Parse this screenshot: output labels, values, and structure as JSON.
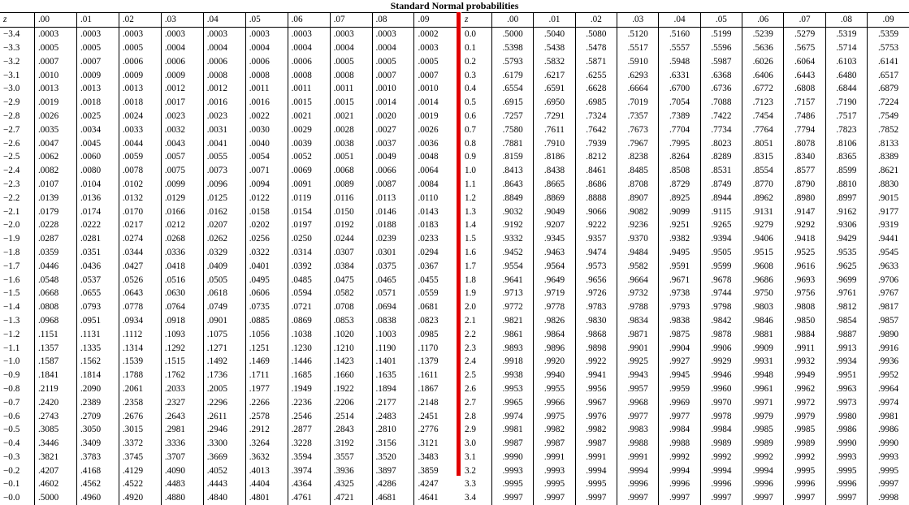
{
  "title": "Standard Normal probabilities",
  "z_header": "z",
  "column_headers": [
    ".00",
    ".01",
    ".02",
    ".03",
    ".04",
    ".05",
    ".06",
    ".07",
    ".08",
    ".09"
  ],
  "left_table": {
    "rows": [
      {
        "z": "−3.4",
        "values": [
          ".0003",
          ".0003",
          ".0003",
          ".0003",
          ".0003",
          ".0003",
          ".0003",
          ".0003",
          ".0003",
          ".0002"
        ]
      },
      {
        "z": "−3.3",
        "values": [
          ".0005",
          ".0005",
          ".0005",
          ".0004",
          ".0004",
          ".0004",
          ".0004",
          ".0004",
          ".0004",
          ".0003"
        ]
      },
      {
        "z": "−3.2",
        "values": [
          ".0007",
          ".0007",
          ".0006",
          ".0006",
          ".0006",
          ".0006",
          ".0006",
          ".0005",
          ".0005",
          ".0005"
        ]
      },
      {
        "z": "−3.1",
        "values": [
          ".0010",
          ".0009",
          ".0009",
          ".0009",
          ".0008",
          ".0008",
          ".0008",
          ".0008",
          ".0007",
          ".0007"
        ]
      },
      {
        "z": "−3.0",
        "values": [
          ".0013",
          ".0013",
          ".0013",
          ".0012",
          ".0012",
          ".0011",
          ".0011",
          ".0011",
          ".0010",
          ".0010"
        ]
      },
      {
        "z": "−2.9",
        "values": [
          ".0019",
          ".0018",
          ".0018",
          ".0017",
          ".0016",
          ".0016",
          ".0015",
          ".0015",
          ".0014",
          ".0014"
        ]
      },
      {
        "z": "−2.8",
        "values": [
          ".0026",
          ".0025",
          ".0024",
          ".0023",
          ".0023",
          ".0022",
          ".0021",
          ".0021",
          ".0020",
          ".0019"
        ]
      },
      {
        "z": "−2.7",
        "values": [
          ".0035",
          ".0034",
          ".0033",
          ".0032",
          ".0031",
          ".0030",
          ".0029",
          ".0028",
          ".0027",
          ".0026"
        ]
      },
      {
        "z": "−2.6",
        "values": [
          ".0047",
          ".0045",
          ".0044",
          ".0043",
          ".0041",
          ".0040",
          ".0039",
          ".0038",
          ".0037",
          ".0036"
        ]
      },
      {
        "z": "−2.5",
        "values": [
          ".0062",
          ".0060",
          ".0059",
          ".0057",
          ".0055",
          ".0054",
          ".0052",
          ".0051",
          ".0049",
          ".0048"
        ]
      },
      {
        "z": "−2.4",
        "values": [
          ".0082",
          ".0080",
          ".0078",
          ".0075",
          ".0073",
          ".0071",
          ".0069",
          ".0068",
          ".0066",
          ".0064"
        ]
      },
      {
        "z": "−2.3",
        "values": [
          ".0107",
          ".0104",
          ".0102",
          ".0099",
          ".0096",
          ".0094",
          ".0091",
          ".0089",
          ".0087",
          ".0084"
        ]
      },
      {
        "z": "−2.2",
        "values": [
          ".0139",
          ".0136",
          ".0132",
          ".0129",
          ".0125",
          ".0122",
          ".0119",
          ".0116",
          ".0113",
          ".0110"
        ]
      },
      {
        "z": "−2.1",
        "values": [
          ".0179",
          ".0174",
          ".0170",
          ".0166",
          ".0162",
          ".0158",
          ".0154",
          ".0150",
          ".0146",
          ".0143"
        ]
      },
      {
        "z": "−2.0",
        "values": [
          ".0228",
          ".0222",
          ".0217",
          ".0212",
          ".0207",
          ".0202",
          ".0197",
          ".0192",
          ".0188",
          ".0183"
        ]
      },
      {
        "z": "−1.9",
        "values": [
          ".0287",
          ".0281",
          ".0274",
          ".0268",
          ".0262",
          ".0256",
          ".0250",
          ".0244",
          ".0239",
          ".0233"
        ]
      },
      {
        "z": "−1.8",
        "values": [
          ".0359",
          ".0351",
          ".0344",
          ".0336",
          ".0329",
          ".0322",
          ".0314",
          ".0307",
          ".0301",
          ".0294"
        ]
      },
      {
        "z": "−1.7",
        "values": [
          ".0446",
          ".0436",
          ".0427",
          ".0418",
          ".0409",
          ".0401",
          ".0392",
          ".0384",
          ".0375",
          ".0367"
        ]
      },
      {
        "z": "−1.6",
        "values": [
          ".0548",
          ".0537",
          ".0526",
          ".0516",
          ".0505",
          ".0495",
          ".0485",
          ".0475",
          ".0465",
          ".0455"
        ]
      },
      {
        "z": "−1.5",
        "values": [
          ".0668",
          ".0655",
          ".0643",
          ".0630",
          ".0618",
          ".0606",
          ".0594",
          ".0582",
          ".0571",
          ".0559"
        ]
      },
      {
        "z": "−1.4",
        "values": [
          ".0808",
          ".0793",
          ".0778",
          ".0764",
          ".0749",
          ".0735",
          ".0721",
          ".0708",
          ".0694",
          ".0681"
        ]
      },
      {
        "z": "−1.3",
        "values": [
          ".0968",
          ".0951",
          ".0934",
          ".0918",
          ".0901",
          ".0885",
          ".0869",
          ".0853",
          ".0838",
          ".0823"
        ]
      },
      {
        "z": "−1.2",
        "values": [
          ".1151",
          ".1131",
          ".1112",
          ".1093",
          ".1075",
          ".1056",
          ".1038",
          ".1020",
          ".1003",
          ".0985"
        ]
      },
      {
        "z": "−1.1",
        "values": [
          ".1357",
          ".1335",
          ".1314",
          ".1292",
          ".1271",
          ".1251",
          ".1230",
          ".1210",
          ".1190",
          ".1170"
        ]
      },
      {
        "z": "−1.0",
        "values": [
          ".1587",
          ".1562",
          ".1539",
          ".1515",
          ".1492",
          ".1469",
          ".1446",
          ".1423",
          ".1401",
          ".1379"
        ]
      },
      {
        "z": "−0.9",
        "values": [
          ".1841",
          ".1814",
          ".1788",
          ".1762",
          ".1736",
          ".1711",
          ".1685",
          ".1660",
          ".1635",
          ".1611"
        ]
      },
      {
        "z": "−0.8",
        "values": [
          ".2119",
          ".2090",
          ".2061",
          ".2033",
          ".2005",
          ".1977",
          ".1949",
          ".1922",
          ".1894",
          ".1867"
        ]
      },
      {
        "z": "−0.7",
        "values": [
          ".2420",
          ".2389",
          ".2358",
          ".2327",
          ".2296",
          ".2266",
          ".2236",
          ".2206",
          ".2177",
          ".2148"
        ]
      },
      {
        "z": "−0.6",
        "values": [
          ".2743",
          ".2709",
          ".2676",
          ".2643",
          ".2611",
          ".2578",
          ".2546",
          ".2514",
          ".2483",
          ".2451"
        ]
      },
      {
        "z": "−0.5",
        "values": [
          ".3085",
          ".3050",
          ".3015",
          ".2981",
          ".2946",
          ".2912",
          ".2877",
          ".2843",
          ".2810",
          ".2776"
        ]
      },
      {
        "z": "−0.4",
        "values": [
          ".3446",
          ".3409",
          ".3372",
          ".3336",
          ".3300",
          ".3264",
          ".3228",
          ".3192",
          ".3156",
          ".3121"
        ]
      },
      {
        "z": "−0.3",
        "values": [
          ".3821",
          ".3783",
          ".3745",
          ".3707",
          ".3669",
          ".3632",
          ".3594",
          ".3557",
          ".3520",
          ".3483"
        ]
      },
      {
        "z": "−0.2",
        "values": [
          ".4207",
          ".4168",
          ".4129",
          ".4090",
          ".4052",
          ".4013",
          ".3974",
          ".3936",
          ".3897",
          ".3859"
        ]
      },
      {
        "z": "−0.1",
        "values": [
          ".4602",
          ".4562",
          ".4522",
          ".4483",
          ".4443",
          ".4404",
          ".4364",
          ".4325",
          ".4286",
          ".4247"
        ]
      },
      {
        "z": "−0.0",
        "values": [
          ".5000",
          ".4960",
          ".4920",
          ".4880",
          ".4840",
          ".4801",
          ".4761",
          ".4721",
          ".4681",
          ".4641"
        ]
      }
    ]
  },
  "right_table": {
    "rows": [
      {
        "z": "0.0",
        "values": [
          ".5000",
          ".5040",
          ".5080",
          ".5120",
          ".5160",
          ".5199",
          ".5239",
          ".5279",
          ".5319",
          ".5359"
        ]
      },
      {
        "z": "0.1",
        "values": [
          ".5398",
          ".5438",
          ".5478",
          ".5517",
          ".5557",
          ".5596",
          ".5636",
          ".5675",
          ".5714",
          ".5753"
        ]
      },
      {
        "z": "0.2",
        "values": [
          ".5793",
          ".5832",
          ".5871",
          ".5910",
          ".5948",
          ".5987",
          ".6026",
          ".6064",
          ".6103",
          ".6141"
        ]
      },
      {
        "z": "0.3",
        "values": [
          ".6179",
          ".6217",
          ".6255",
          ".6293",
          ".6331",
          ".6368",
          ".6406",
          ".6443",
          ".6480",
          ".6517"
        ]
      },
      {
        "z": "0.4",
        "values": [
          ".6554",
          ".6591",
          ".6628",
          ".6664",
          ".6700",
          ".6736",
          ".6772",
          ".6808",
          ".6844",
          ".6879"
        ]
      },
      {
        "z": "0.5",
        "values": [
          ".6915",
          ".6950",
          ".6985",
          ".7019",
          ".7054",
          ".7088",
          ".7123",
          ".7157",
          ".7190",
          ".7224"
        ]
      },
      {
        "z": "0.6",
        "values": [
          ".7257",
          ".7291",
          ".7324",
          ".7357",
          ".7389",
          ".7422",
          ".7454",
          ".7486",
          ".7517",
          ".7549"
        ]
      },
      {
        "z": "0.7",
        "values": [
          ".7580",
          ".7611",
          ".7642",
          ".7673",
          ".7704",
          ".7734",
          ".7764",
          ".7794",
          ".7823",
          ".7852"
        ]
      },
      {
        "z": "0.8",
        "values": [
          ".7881",
          ".7910",
          ".7939",
          ".7967",
          ".7995",
          ".8023",
          ".8051",
          ".8078",
          ".8106",
          ".8133"
        ]
      },
      {
        "z": "0.9",
        "values": [
          ".8159",
          ".8186",
          ".8212",
          ".8238",
          ".8264",
          ".8289",
          ".8315",
          ".8340",
          ".8365",
          ".8389"
        ]
      },
      {
        "z": "1.0",
        "values": [
          ".8413",
          ".8438",
          ".8461",
          ".8485",
          ".8508",
          ".8531",
          ".8554",
          ".8577",
          ".8599",
          ".8621"
        ]
      },
      {
        "z": "1.1",
        "values": [
          ".8643",
          ".8665",
          ".8686",
          ".8708",
          ".8729",
          ".8749",
          ".8770",
          ".8790",
          ".8810",
          ".8830"
        ]
      },
      {
        "z": "1.2",
        "values": [
          ".8849",
          ".8869",
          ".8888",
          ".8907",
          ".8925",
          ".8944",
          ".8962",
          ".8980",
          ".8997",
          ".9015"
        ]
      },
      {
        "z": "1.3",
        "values": [
          ".9032",
          ".9049",
          ".9066",
          ".9082",
          ".9099",
          ".9115",
          ".9131",
          ".9147",
          ".9162",
          ".9177"
        ]
      },
      {
        "z": "1.4",
        "values": [
          ".9192",
          ".9207",
          ".9222",
          ".9236",
          ".9251",
          ".9265",
          ".9279",
          ".9292",
          ".9306",
          ".9319"
        ]
      },
      {
        "z": "1.5",
        "values": [
          ".9332",
          ".9345",
          ".9357",
          ".9370",
          ".9382",
          ".9394",
          ".9406",
          ".9418",
          ".9429",
          ".9441"
        ]
      },
      {
        "z": "1.6",
        "values": [
          ".9452",
          ".9463",
          ".9474",
          ".9484",
          ".9495",
          ".9505",
          ".9515",
          ".9525",
          ".9535",
          ".9545"
        ]
      },
      {
        "z": "1.7",
        "values": [
          ".9554",
          ".9564",
          ".9573",
          ".9582",
          ".9591",
          ".9599",
          ".9608",
          ".9616",
          ".9625",
          ".9633"
        ]
      },
      {
        "z": "1.8",
        "values": [
          ".9641",
          ".9649",
          ".9656",
          ".9664",
          ".9671",
          ".9678",
          ".9686",
          ".9693",
          ".9699",
          ".9706"
        ]
      },
      {
        "z": "1.9",
        "values": [
          ".9713",
          ".9719",
          ".9726",
          ".9732",
          ".9738",
          ".9744",
          ".9750",
          ".9756",
          ".9761",
          ".9767"
        ]
      },
      {
        "z": "2.0",
        "values": [
          ".9772",
          ".9778",
          ".9783",
          ".9788",
          ".9793",
          ".9798",
          ".9803",
          ".9808",
          ".9812",
          ".9817"
        ]
      },
      {
        "z": "2.1",
        "values": [
          ".9821",
          ".9826",
          ".9830",
          ".9834",
          ".9838",
          ".9842",
          ".9846",
          ".9850",
          ".9854",
          ".9857"
        ]
      },
      {
        "z": "2.2",
        "values": [
          ".9861",
          ".9864",
          ".9868",
          ".9871",
          ".9875",
          ".9878",
          ".9881",
          ".9884",
          ".9887",
          ".9890"
        ]
      },
      {
        "z": "2.3",
        "values": [
          ".9893",
          ".9896",
          ".9898",
          ".9901",
          ".9904",
          ".9906",
          ".9909",
          ".9911",
          ".9913",
          ".9916"
        ]
      },
      {
        "z": "2.4",
        "values": [
          ".9918",
          ".9920",
          ".9922",
          ".9925",
          ".9927",
          ".9929",
          ".9931",
          ".9932",
          ".9934",
          ".9936"
        ]
      },
      {
        "z": "2.5",
        "values": [
          ".9938",
          ".9940",
          ".9941",
          ".9943",
          ".9945",
          ".9946",
          ".9948",
          ".9949",
          ".9951",
          ".9952"
        ]
      },
      {
        "z": "2.6",
        "values": [
          ".9953",
          ".9955",
          ".9956",
          ".9957",
          ".9959",
          ".9960",
          ".9961",
          ".9962",
          ".9963",
          ".9964"
        ]
      },
      {
        "z": "2.7",
        "values": [
          ".9965",
          ".9966",
          ".9967",
          ".9968",
          ".9969",
          ".9970",
          ".9971",
          ".9972",
          ".9973",
          ".9974"
        ]
      },
      {
        "z": "2.8",
        "values": [
          ".9974",
          ".9975",
          ".9976",
          ".9977",
          ".9977",
          ".9978",
          ".9979",
          ".9979",
          ".9980",
          ".9981"
        ]
      },
      {
        "z": "2.9",
        "values": [
          ".9981",
          ".9982",
          ".9982",
          ".9983",
          ".9984",
          ".9984",
          ".9985",
          ".9985",
          ".9986",
          ".9986"
        ]
      },
      {
        "z": "3.0",
        "values": [
          ".9987",
          ".9987",
          ".9987",
          ".9988",
          ".9988",
          ".9989",
          ".9989",
          ".9989",
          ".9990",
          ".9990"
        ]
      },
      {
        "z": "3.1",
        "values": [
          ".9990",
          ".9991",
          ".9991",
          ".9991",
          ".9992",
          ".9992",
          ".9992",
          ".9992",
          ".9993",
          ".9993"
        ]
      },
      {
        "z": "3.2",
        "values": [
          ".9993",
          ".9993",
          ".9994",
          ".9994",
          ".9994",
          ".9994",
          ".9994",
          ".9995",
          ".9995",
          ".9995"
        ]
      },
      {
        "z": "3.3",
        "values": [
          ".9995",
          ".9995",
          ".9995",
          ".9996",
          ".9996",
          ".9996",
          ".9996",
          ".9996",
          ".9996",
          ".9997"
        ]
      },
      {
        "z": "3.4",
        "values": [
          ".9997",
          ".9997",
          ".9997",
          ".9997",
          ".9997",
          ".9997",
          ".9997",
          ".9997",
          ".9997",
          ".9998"
        ]
      }
    ]
  },
  "colors": {
    "divider": "#e00000",
    "text": "#000000",
    "background": "#ffffff"
  }
}
